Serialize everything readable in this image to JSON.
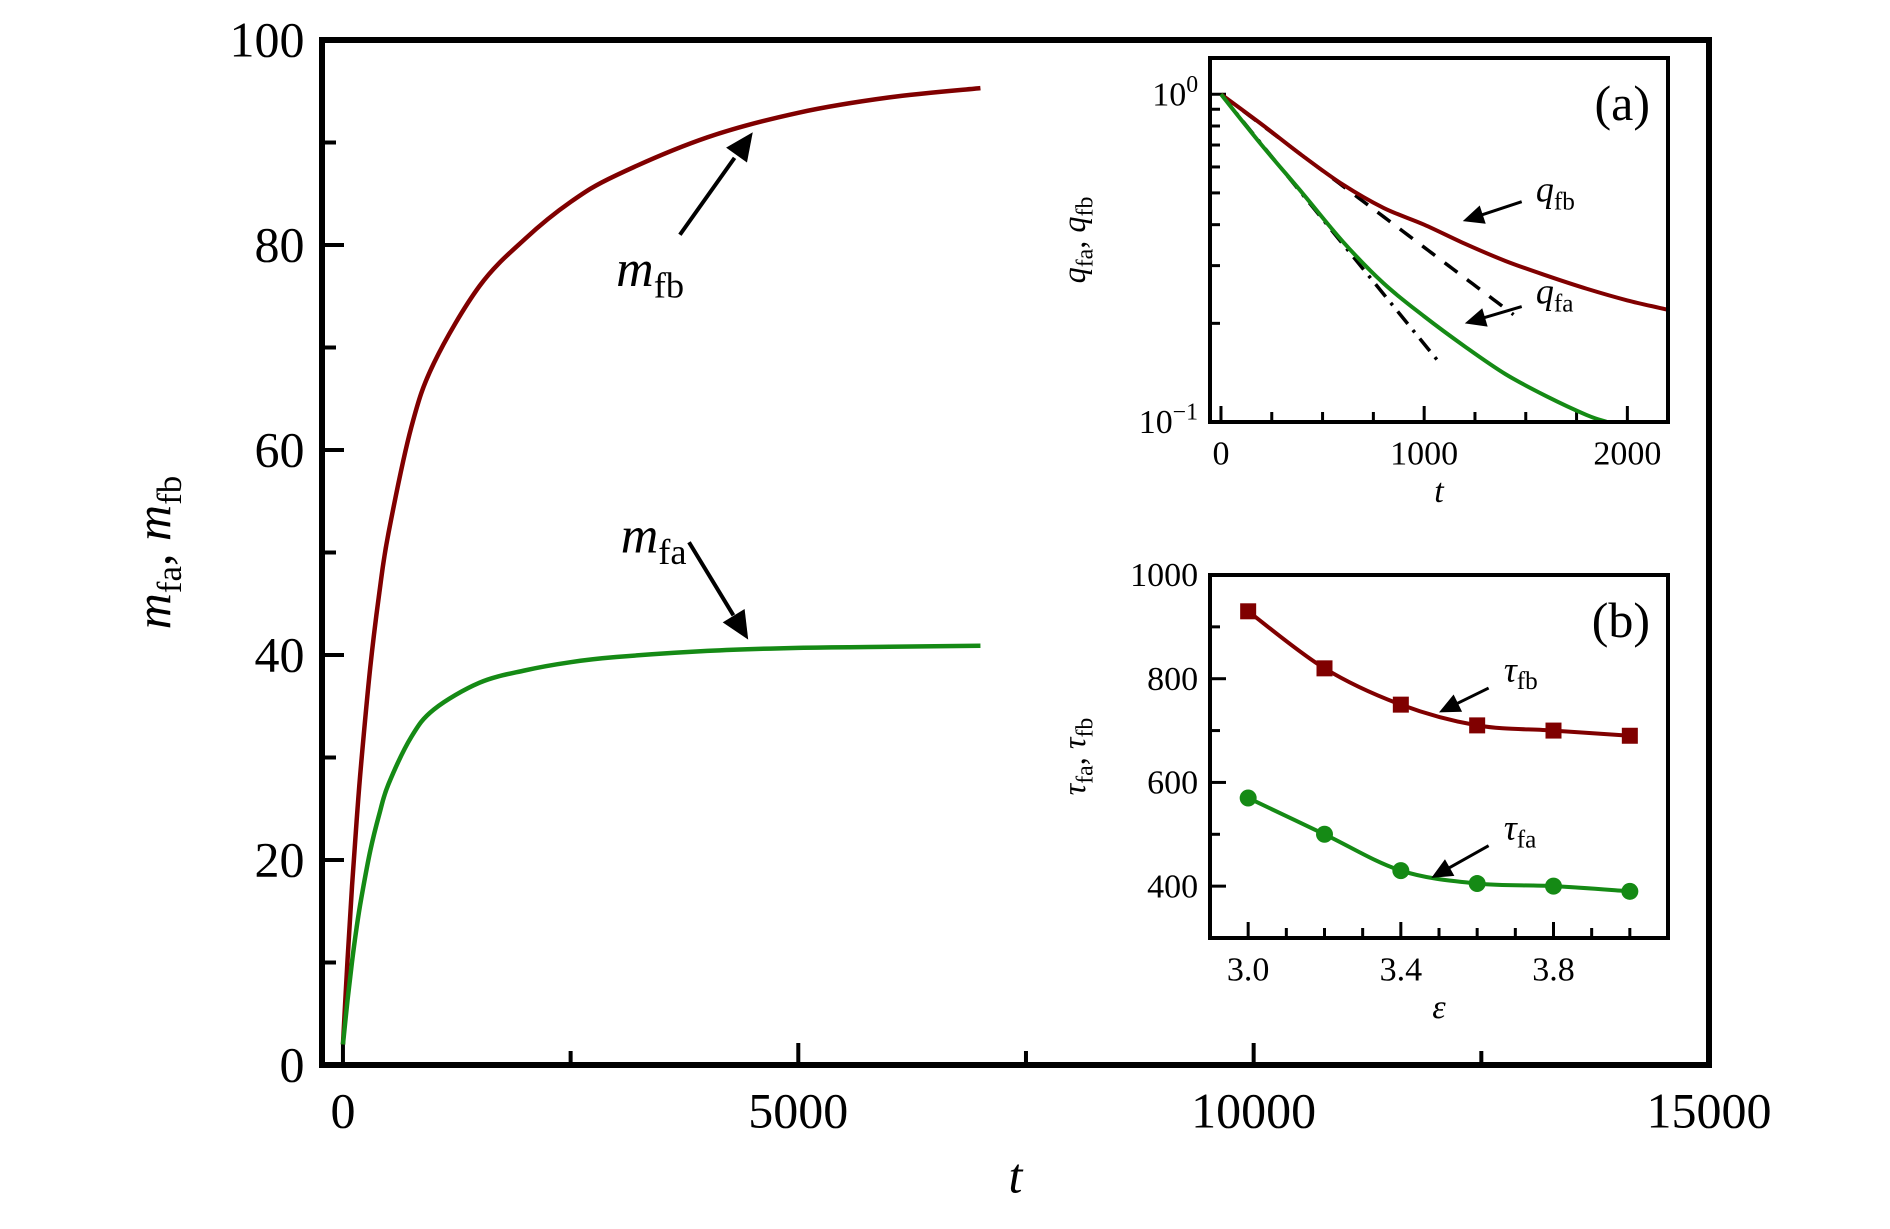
{
  "chart_data": [
    {
      "id": "main",
      "type": "line",
      "xlabel": "t",
      "ylabel": "m_fa,  m_fb",
      "xlim": [
        -230,
        15000
      ],
      "ylim": [
        0,
        100
      ],
      "xticks": [
        0,
        5000,
        10000,
        15000
      ],
      "xtick_labels": [
        "0",
        "5000",
        "10000",
        "15000"
      ],
      "xminor": [
        2500,
        7500,
        12500
      ],
      "yticks": [
        0,
        20,
        40,
        60,
        80,
        100
      ],
      "ytick_labels": [
        "0",
        "20",
        "40",
        "60",
        "80",
        "100"
      ],
      "yminor": [
        10,
        30,
        50,
        70,
        90
      ],
      "x": [
        0,
        50,
        100,
        150,
        200,
        300,
        400,
        500,
        750,
        1000,
        1500,
        2000,
        2500,
        3000,
        4000,
        5000,
        6000,
        7000
      ],
      "series": [
        {
          "name": "m_fb",
          "color": "#800000",
          "values": [
            2,
            10.2,
            17.5,
            23.8,
            29.4,
            38.8,
            46.1,
            51.9,
            62.2,
            68.5,
            76.0,
            80.6,
            84.2,
            86.8,
            90.5,
            92.9,
            94.4,
            95.3
          ]
        },
        {
          "name": "m_fa",
          "color": "#158a15",
          "values": [
            2,
            6.3,
            10.1,
            13.4,
            16.2,
            20.9,
            24.5,
            27.4,
            32.0,
            34.7,
            37.3,
            38.5,
            39.3,
            39.8,
            40.4,
            40.7,
            40.8,
            40.9
          ]
        }
      ],
      "annotations": [
        {
          "text": "m_fb",
          "label_at": [
            3000,
            76
          ],
          "arrow_from": [
            3700,
            81
          ],
          "arrow_to": [
            4500,
            91
          ]
        },
        {
          "text": "m_fa",
          "label_at": [
            3050,
            50
          ],
          "arrow_from": [
            3800,
            51
          ],
          "arrow_to": [
            4450,
            41.5
          ]
        }
      ]
    },
    {
      "id": "inset-a",
      "type": "line",
      "panel_label": "(a)",
      "xlabel": "t",
      "ylabel": "q_fa, q_fb",
      "yscale": "log",
      "xlim": [
        -54,
        2200
      ],
      "ylim": [
        0.1,
        1.29
      ],
      "xticks": [
        0,
        1000,
        2000
      ],
      "xtick_labels": [
        "0",
        "1000",
        "2000"
      ],
      "xminor": [
        250,
        500,
        750,
        1250,
        1500,
        1750
      ],
      "yticks": [
        0.1,
        1
      ],
      "ytick_labels": [
        "10^−1",
        "10^0"
      ],
      "yminor": [
        0.2,
        0.3,
        0.4,
        0.5,
        0.6,
        0.7,
        0.8,
        0.9
      ],
      "series": [
        {
          "name": "q_fb",
          "color": "#800000",
          "x": [
            0,
            200,
            400,
            600,
            800,
            1000,
            1200,
            1400,
            1600,
            1800,
            2000,
            2200
          ],
          "values": [
            1,
            0.81,
            0.65,
            0.53,
            0.45,
            0.4,
            0.35,
            0.31,
            0.28,
            0.255,
            0.235,
            0.22
          ]
        },
        {
          "name": "q_fa",
          "color": "#158a15",
          "x": [
            0,
            200,
            400,
            600,
            800,
            1000,
            1200,
            1400,
            1600,
            1800,
            1900
          ],
          "values": [
            1,
            0.7,
            0.5,
            0.355,
            0.265,
            0.21,
            0.17,
            0.14,
            0.12,
            0.105,
            0.1
          ]
        }
      ],
      "fits": [
        {
          "name": "exp fit q_fb",
          "tau": 930,
          "t_end": 1450,
          "style": "dashed"
        },
        {
          "name": "exp fit q_fa",
          "tau": 570,
          "t_end": 1080,
          "style": "dashdot"
        }
      ],
      "annotations": [
        {
          "text": "q_fb",
          "label_at": [
            1550,
            0.47
          ],
          "arrow_from": [
            1480,
            0.47
          ],
          "arrow_to": [
            1190,
            0.41
          ]
        },
        {
          "text": "q_fa",
          "label_at": [
            1550,
            0.23
          ],
          "arrow_from": [
            1480,
            0.225
          ],
          "arrow_to": [
            1200,
            0.2
          ]
        }
      ]
    },
    {
      "id": "inset-b",
      "type": "line",
      "panel_label": "(b)",
      "xlabel": "ε",
      "ylabel": "τ_fa, τ_fb",
      "xlim": [
        2.9,
        4.1
      ],
      "ylim": [
        300,
        1000
      ],
      "xticks": [
        3.0,
        3.4,
        3.8
      ],
      "xtick_labels": [
        "3.0",
        "3.4",
        "3.8"
      ],
      "xminor": [
        3.1,
        3.2,
        3.3,
        3.5,
        3.6,
        3.7,
        3.9,
        4.0
      ],
      "yticks": [
        400,
        600,
        800,
        1000
      ],
      "ytick_labels": [
        "400",
        "600",
        "800",
        "1000"
      ],
      "yminor": [
        500,
        700,
        900
      ],
      "x": [
        3.0,
        3.2,
        3.4,
        3.6,
        3.8,
        4.0
      ],
      "series": [
        {
          "name": "τ_fb",
          "color": "#800000",
          "marker": "square",
          "values": [
            930,
            820,
            750,
            710,
            700,
            690
          ]
        },
        {
          "name": "τ_fa",
          "color": "#158a15",
          "marker": "circle",
          "values": [
            570,
            500,
            430,
            405,
            400,
            390
          ]
        }
      ],
      "annotations": [
        {
          "text": "τ_fb",
          "label_at": [
            3.67,
            795
          ],
          "arrow_from": [
            3.63,
            782
          ],
          "arrow_to": [
            3.5,
            735
          ]
        },
        {
          "text": "τ_fa",
          "label_at": [
            3.67,
            490
          ],
          "arrow_from": [
            3.63,
            478
          ],
          "arrow_to": [
            3.48,
            416
          ]
        }
      ]
    }
  ]
}
